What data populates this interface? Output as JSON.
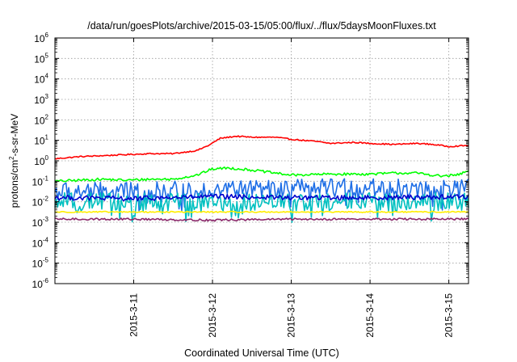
{
  "chart_data": {
    "type": "line",
    "title": "/data/run/goesPlots/archive/2015-03-15/05:00/flux/../flux/5daysMoonFluxes.txt",
    "xlabel": "Coordinated Universal Time (UTC)",
    "ylabel": {
      "pre": "protons/cm",
      "sup": "2",
      "post": "-s-sr-MeV"
    },
    "yscale": "log",
    "ylim_exponents": [
      -6,
      6
    ],
    "y_tick_base": "10",
    "y_tick_exponents": [
      "-6",
      "-5",
      "-4",
      "-3",
      "-2",
      "-1",
      "0",
      "1",
      "2",
      "3",
      "4",
      "5",
      "6"
    ],
    "x_day_range": [
      0,
      5.25
    ],
    "x_ticks": [
      {
        "day": 1,
        "label": "2015-3-11"
      },
      {
        "day": 2,
        "label": "2015-3-12"
      },
      {
        "day": 3,
        "label": "2015-3-13"
      },
      {
        "day": 4,
        "label": "2015-3-14"
      },
      {
        "day": 5,
        "label": "2015-3-15"
      }
    ],
    "grid": true,
    "legend": "none",
    "series": [
      {
        "color": "#ff0000",
        "log10_points": [
          [
            0,
            0.1
          ],
          [
            0.3,
            0.2
          ],
          [
            0.6,
            0.25
          ],
          [
            0.9,
            0.3
          ],
          [
            1.2,
            0.35
          ],
          [
            1.5,
            0.35
          ],
          [
            1.8,
            0.5
          ],
          [
            1.95,
            0.75
          ],
          [
            2.1,
            1.1
          ],
          [
            2.3,
            1.2
          ],
          [
            2.5,
            1.15
          ],
          [
            2.8,
            1.15
          ],
          [
            3.0,
            1.05
          ],
          [
            3.3,
            0.95
          ],
          [
            3.5,
            0.85
          ],
          [
            3.8,
            0.9
          ],
          [
            4.0,
            0.85
          ],
          [
            4.3,
            0.8
          ],
          [
            4.6,
            0.85
          ],
          [
            4.8,
            0.8
          ],
          [
            5.0,
            0.7
          ],
          [
            5.25,
            0.75
          ]
        ],
        "noise": 0.03
      },
      {
        "color": "#00ff00",
        "log10_points": [
          [
            0,
            -1.0
          ],
          [
            0.3,
            -0.95
          ],
          [
            0.6,
            -0.9
          ],
          [
            0.9,
            -0.95
          ],
          [
            1.2,
            -0.9
          ],
          [
            1.5,
            -0.9
          ],
          [
            1.8,
            -0.7
          ],
          [
            2.0,
            -0.4
          ],
          [
            2.2,
            -0.35
          ],
          [
            2.5,
            -0.45
          ],
          [
            2.8,
            -0.6
          ],
          [
            3.0,
            -0.7
          ],
          [
            3.5,
            -0.65
          ],
          [
            4.0,
            -0.65
          ],
          [
            4.3,
            -0.6
          ],
          [
            4.6,
            -0.6
          ],
          [
            4.9,
            -0.75
          ],
          [
            5.1,
            -0.7
          ],
          [
            5.25,
            -0.5
          ]
        ],
        "noise": 0.06
      },
      {
        "color": "#1e6ee6",
        "log10_points": [
          [
            0,
            -1.5
          ],
          [
            1.0,
            -1.5
          ],
          [
            2.0,
            -1.4
          ],
          [
            3.0,
            -1.35
          ],
          [
            4.0,
            -1.3
          ],
          [
            5.0,
            -1.4
          ],
          [
            5.25,
            -1.3
          ]
        ],
        "noise": 0.45
      },
      {
        "color": "#00c0c0",
        "log10_points": [
          [
            0,
            -2.0
          ],
          [
            1.0,
            -2.0
          ],
          [
            2.0,
            -2.05
          ],
          [
            3.0,
            -2.0
          ],
          [
            4.0,
            -2.0
          ],
          [
            5.25,
            -2.0
          ]
        ],
        "noise": 0.45
      },
      {
        "color": "#0000cc",
        "log10_points": [
          [
            0,
            -1.8
          ],
          [
            1.0,
            -1.85
          ],
          [
            2.0,
            -1.75
          ],
          [
            3.0,
            -1.8
          ],
          [
            4.0,
            -1.8
          ],
          [
            5.25,
            -1.75
          ]
        ],
        "noise": 0.12
      },
      {
        "color": "#ffee00",
        "log10_points": [
          [
            0,
            -2.5
          ],
          [
            1.0,
            -2.5
          ],
          [
            2.0,
            -2.5
          ],
          [
            3.0,
            -2.5
          ],
          [
            4.0,
            -2.5
          ],
          [
            5.25,
            -2.5
          ]
        ],
        "noise": 0.03
      },
      {
        "color": "#8b2a6b",
        "log10_points": [
          [
            0,
            -2.85
          ],
          [
            1.0,
            -2.85
          ],
          [
            2.0,
            -2.9
          ],
          [
            3.0,
            -2.85
          ],
          [
            4.0,
            -2.85
          ],
          [
            5.25,
            -2.85
          ]
        ],
        "noise": 0.05
      }
    ]
  }
}
